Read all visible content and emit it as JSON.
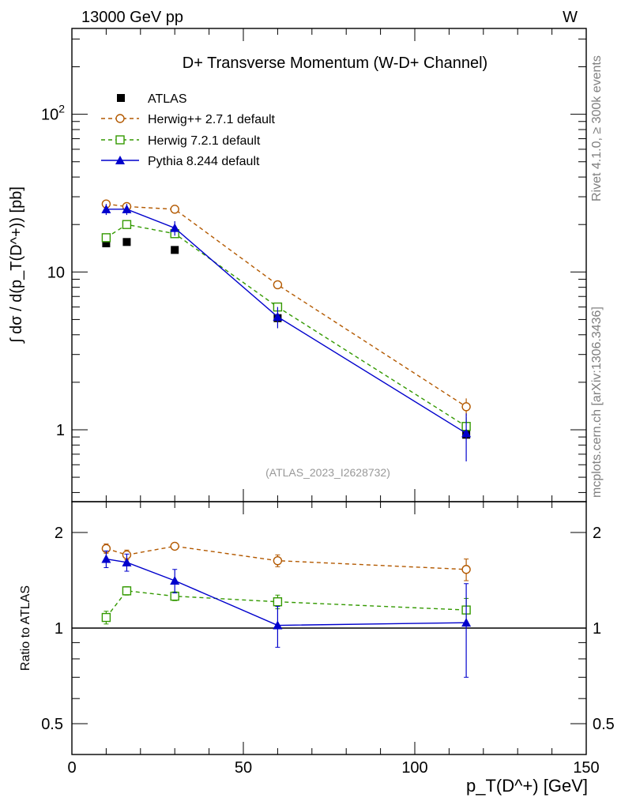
{
  "header": {
    "left": "13000 GeV pp",
    "right": "W"
  },
  "side_labels": {
    "rivet": "Rivet 4.1.0, ≥ 300k events",
    "mcplots": "mcplots.cern.ch [arXiv:1306.3436]"
  },
  "chart_data": {
    "type": "line",
    "title": "D+ Transverse Momentum (W-D+ Channel)",
    "reference": "(ATLAS_2023_I2628732)",
    "xlabel": "p_T(D^+) [GeV]",
    "ylabel": "∫ dσ / d(p_T(D^+)) [pb]",
    "ratio_ylabel": "Ratio to ATLAS",
    "xlim": [
      0,
      150
    ],
    "ylim": [
      0.35,
      350
    ],
    "yscale": "log",
    "ratio_ylim": [
      0.4,
      2.5
    ],
    "ratio_yscale": "log",
    "x_ticks": [
      0,
      50,
      100,
      150
    ],
    "y_ticks": [
      1,
      10,
      100
    ],
    "y_tick_labels": [
      "1",
      "10",
      "10^2"
    ],
    "ratio_ticks": [
      0.5,
      1,
      2
    ],
    "ratio_tick_labels": [
      "0.5",
      "1",
      "2"
    ],
    "legend_position": "top-left",
    "x": [
      10,
      16,
      30,
      60,
      115
    ],
    "data": {
      "name": "ATLAS",
      "color": "#000000",
      "values": [
        15.2,
        15.5,
        13.8,
        5.1,
        0.93
      ]
    },
    "series": [
      {
        "name": "Herwig++ 2.7.1 default",
        "color": "#b35900",
        "marker": "open-circle",
        "linestyle": "dashed",
        "values": [
          27,
          26,
          25,
          8.3,
          1.4
        ],
        "errors": [
          0.7,
          0.6,
          0.5,
          0.3,
          0.18
        ],
        "ratio": [
          1.78,
          1.7,
          1.81,
          1.63,
          1.53
        ],
        "ratio_errors": [
          0.06,
          0.06,
          0.04,
          0.07,
          0.12
        ]
      },
      {
        "name": "Herwig 7.2.1 default",
        "color": "#339900",
        "marker": "open-square",
        "linestyle": "dashed",
        "values": [
          16.5,
          20,
          17.5,
          6,
          1.05
        ],
        "errors": [
          0.6,
          0.6,
          0.5,
          0.3,
          0.15
        ],
        "ratio": [
          1.08,
          1.31,
          1.26,
          1.21,
          1.14
        ],
        "ratio_errors": [
          0.05,
          0.04,
          0.04,
          0.06,
          0.1
        ]
      },
      {
        "name": "Pythia 8.244 default",
        "color": "#0000cc",
        "marker": "filled-triangle",
        "linestyle": "solid",
        "values": [
          25,
          25,
          19,
          5.2,
          0.95
        ],
        "errors": [
          2,
          2,
          2,
          0.8,
          0.32
        ],
        "ratio": [
          1.65,
          1.61,
          1.41,
          1.02,
          1.04
        ],
        "ratio_errors": [
          0.1,
          0.1,
          0.12,
          0.15,
          0.34
        ]
      }
    ]
  }
}
